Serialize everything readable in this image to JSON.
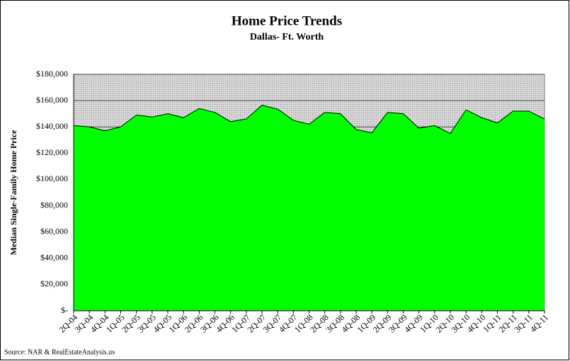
{
  "chart_data": {
    "type": "area",
    "title": "Home Price Trends",
    "subtitle": "Dallas- Ft. Worth",
    "y_label": "Median Single-Family Home Price",
    "source": "Source: NAR & RealEstateAnalysis.us",
    "categories": [
      "2Q-04",
      "3Q-04",
      "4Q-04",
      "1Q-05",
      "2Q-05",
      "3Q-05",
      "4Q-05",
      "1Q-06",
      "2Q-06",
      "3Q-06",
      "4Q-06",
      "1Q-07",
      "2Q-07",
      "3Q-07",
      "4Q-07",
      "1Q-08",
      "2Q-08",
      "3Q-08",
      "4Q-08",
      "1Q-09",
      "2Q-09",
      "3Q-09",
      "4Q-09",
      "1Q-10",
      "2Q-10",
      "3Q-10",
      "4Q-10",
      "1Q-11",
      "2Q-11",
      "3Q-11",
      "4Q-11"
    ],
    "values": [
      141000,
      140000,
      137000,
      140000,
      149000,
      147500,
      150000,
      147000,
      154000,
      151000,
      144000,
      146000,
      156500,
      153500,
      145000,
      142000,
      151000,
      150000,
      138000,
      135500,
      151000,
      150000,
      139000,
      141000,
      135000,
      153000,
      147000,
      143000,
      152000,
      152000,
      146000
    ],
    "color": "#00ff00",
    "ylim": [
      0,
      180000
    ],
    "yticks": [
      {
        "value": 0,
        "label": "$-"
      },
      {
        "value": 20000,
        "label": "$20,000"
      },
      {
        "value": 40000,
        "label": "$40,000"
      },
      {
        "value": 60000,
        "label": "$60,000"
      },
      {
        "value": 80000,
        "label": "$80,000"
      },
      {
        "value": 100000,
        "label": "$100,000"
      },
      {
        "value": 120000,
        "label": "$120,000"
      },
      {
        "value": 140000,
        "label": "$140,000"
      },
      {
        "value": 160000,
        "label": "$160,000"
      },
      {
        "value": 180000,
        "label": "$180,000"
      }
    ],
    "grid": true
  }
}
